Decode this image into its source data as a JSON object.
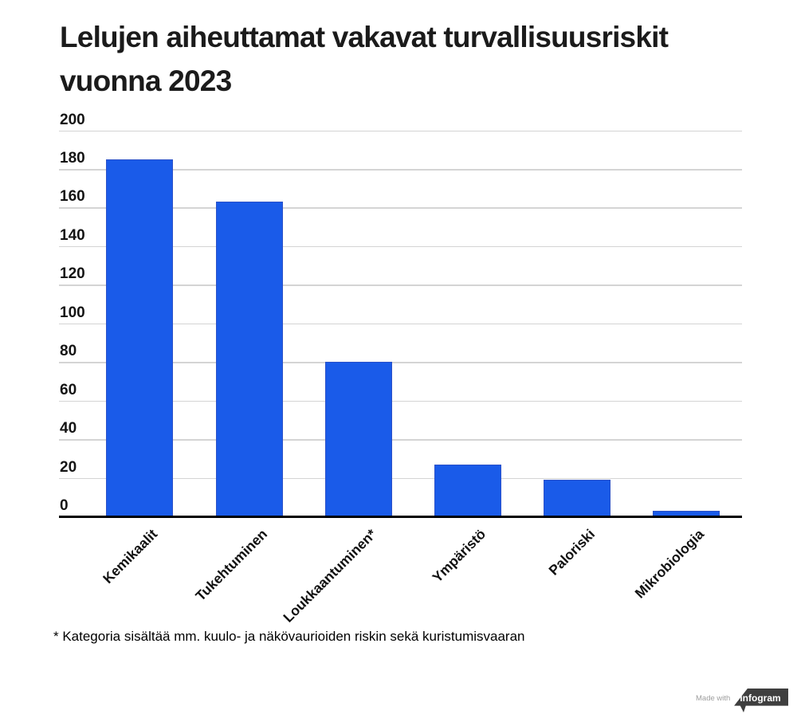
{
  "title_lines": [
    "Lelujen aiheuttamat vakavat turvallisuusriskit",
    "vuonna 2023"
  ],
  "footnote": "* Kategoria sisältää mm. kuulo- ja näkövaurioiden riskin sekä kuristumisvaaran",
  "credit": {
    "made_with": "Made with",
    "brand": "infogram"
  },
  "colors": {
    "bar_fill": "#1a5be9",
    "bar_border": "#2b51c8",
    "gridline": "#d4d4d4",
    "axis_line": "#000000",
    "badge_bg": "#3f3f3f"
  },
  "chart_data": {
    "type": "bar",
    "title": "Lelujen aiheuttamat vakavat turvallisuusriskit vuonna 2023",
    "categories": [
      "Kemikaalit",
      "Tukehtuminen",
      "Loukkaantuminen*",
      "Ympäristö",
      "Paloriski",
      "Mikrobiologia"
    ],
    "values": [
      185,
      163,
      80,
      27,
      19,
      3
    ],
    "xlabel": "",
    "ylabel": "",
    "ylim": [
      0,
      200
    ],
    "yticks": [
      0,
      20,
      40,
      60,
      80,
      100,
      120,
      140,
      160,
      180,
      200
    ],
    "grid": true,
    "legend": "none",
    "footnote": "* Kategoria sisältää mm. kuulo- ja näkövaurioiden riskin sekä kuristumisvaaran"
  }
}
